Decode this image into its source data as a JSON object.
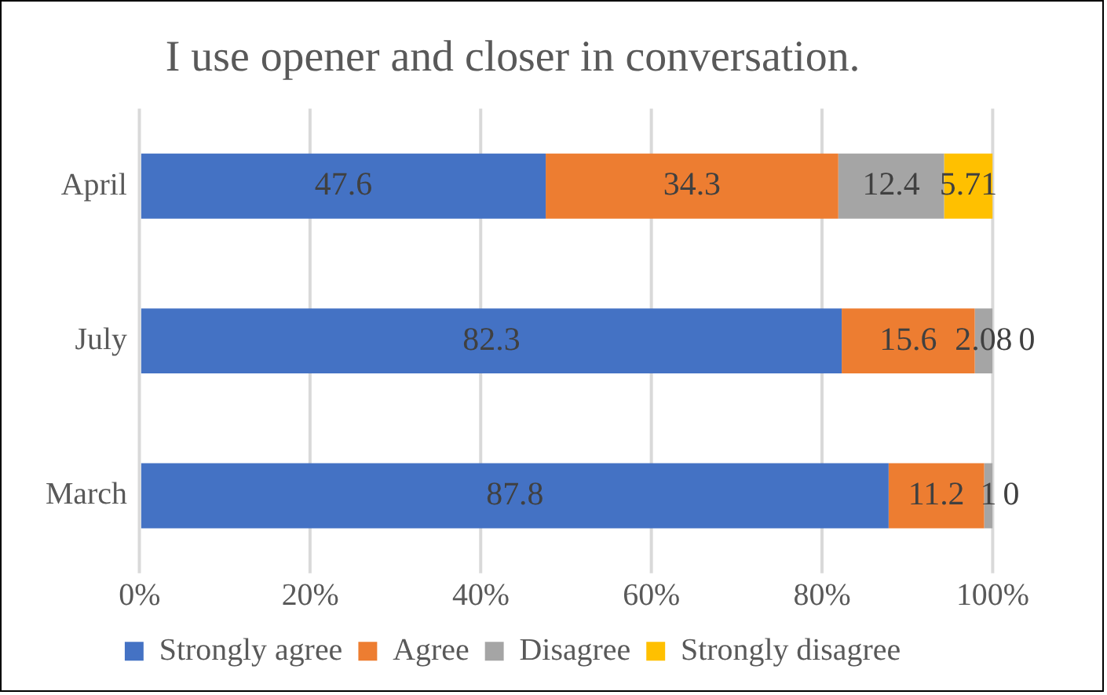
{
  "chart_data": {
    "type": "bar",
    "title": "I use opener and closer in conversation.",
    "orientation": "horizontal",
    "stacked": true,
    "categories": [
      "April",
      "July",
      "March"
    ],
    "series": [
      {
        "name": "Strongly agree",
        "color": "#4472c4",
        "values": [
          47.6,
          82.3,
          87.8
        ]
      },
      {
        "name": "Agree",
        "color": "#ed7d31",
        "values": [
          34.3,
          15.6,
          11.2
        ]
      },
      {
        "name": "Disagree",
        "color": "#a5a5a5",
        "values": [
          12.4,
          2.08,
          1
        ]
      },
      {
        "name": "Strongly disagree",
        "color": "#ffc000",
        "values": [
          5.71,
          0,
          0
        ]
      }
    ],
    "xlim": [
      0,
      100
    ],
    "xticks": [
      {
        "value": 0,
        "label": "0%"
      },
      {
        "value": 20,
        "label": "20%"
      },
      {
        "value": 40,
        "label": "40%"
      },
      {
        "value": 60,
        "label": "60%"
      },
      {
        "value": 80,
        "label": "80%"
      },
      {
        "value": 100,
        "label": "100%"
      }
    ],
    "grid": "x",
    "legend": "bottom",
    "data_labels": true
  }
}
